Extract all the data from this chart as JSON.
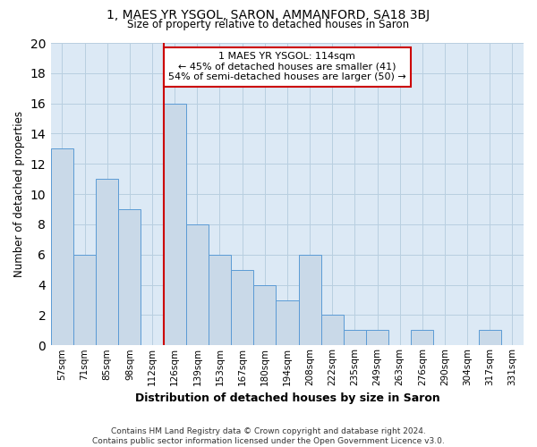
{
  "title1": "1, MAES YR YSGOL, SARON, AMMANFORD, SA18 3BJ",
  "title2": "Size of property relative to detached houses in Saron",
  "xlabel": "Distribution of detached houses by size in Saron",
  "ylabel": "Number of detached properties",
  "categories": [
    "57sqm",
    "71sqm",
    "85sqm",
    "98sqm",
    "112sqm",
    "126sqm",
    "139sqm",
    "153sqm",
    "167sqm",
    "180sqm",
    "194sqm",
    "208sqm",
    "222sqm",
    "235sqm",
    "249sqm",
    "263sqm",
    "276sqm",
    "290sqm",
    "304sqm",
    "317sqm",
    "331sqm"
  ],
  "values": [
    13,
    6,
    11,
    9,
    0,
    16,
    8,
    6,
    5,
    4,
    3,
    6,
    2,
    1,
    1,
    0,
    1,
    0,
    0,
    1,
    0
  ],
  "bar_color": "#c9d9e8",
  "bar_edge_color": "#5b9bd5",
  "annotation_title": "1 MAES YR YSGOL: 114sqm",
  "annotation_line1": "← 45% of detached houses are smaller (41)",
  "annotation_line2": "54% of semi-detached houses are larger (50) →",
  "annotation_box_color": "#ffffff",
  "annotation_border_color": "#cc0000",
  "vline_color": "#cc0000",
  "vline_x": 4.5,
  "ylim": [
    0,
    20
  ],
  "yticks": [
    0,
    2,
    4,
    6,
    8,
    10,
    12,
    14,
    16,
    18,
    20
  ],
  "grid_color": "#b8cfe0",
  "footer1": "Contains HM Land Registry data © Crown copyright and database right 2024.",
  "footer2": "Contains public sector information licensed under the Open Government Licence v3.0.",
  "bg_color": "#ffffff",
  "plot_bg_color": "#dce9f5"
}
